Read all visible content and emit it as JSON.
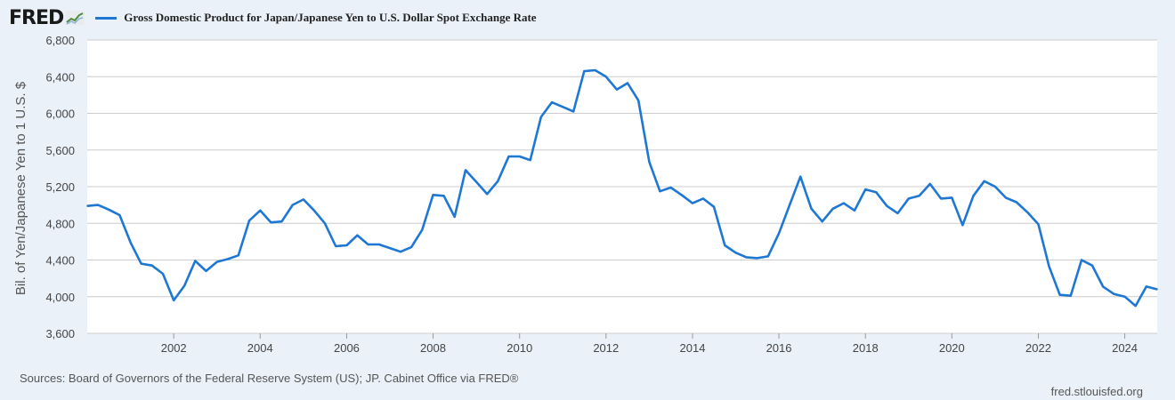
{
  "header": {
    "logo_text": "FRED",
    "legend_label": "Gross Domestic Product for Japan/Japanese Yen to U.S. Dollar Spot Exchange Rate"
  },
  "footer": {
    "source": "Sources: Board of Governors of the Federal Reserve System (US); JP. Cabinet Office via FRED®",
    "site": "fred.stlouisfed.org"
  },
  "colors": {
    "line": "#1f77d4",
    "background": "#eaf1f9",
    "plot_background": "#ffffff",
    "grid": "#cccccc"
  },
  "chart_data": {
    "type": "line",
    "title": "Gross Domestic Product for Japan/Japanese Yen to U.S. Dollar Spot Exchange Rate",
    "ylabel": "Bil. of Yen/Japanese Yen to 1 U.S. $",
    "xlabel": "",
    "ylim": [
      3600,
      6800
    ],
    "xlim": [
      "2000-01-01",
      "2024-10-01"
    ],
    "y_ticks": [
      3600,
      4000,
      4400,
      4800,
      5200,
      5600,
      6000,
      6400,
      6800
    ],
    "y_tick_labels": [
      "3,600",
      "4,000",
      "4,400",
      "4,800",
      "5,200",
      "5,600",
      "6,000",
      "6,400",
      "6,800"
    ],
    "x_ticks": [
      "2002",
      "2004",
      "2006",
      "2008",
      "2010",
      "2012",
      "2014",
      "2016",
      "2018",
      "2020",
      "2022",
      "2024"
    ],
    "grid": "horizontal",
    "legend_position": "top-left",
    "series": [
      {
        "name": "Gross Domestic Product for Japan/Japanese Yen to U.S. Dollar Spot Exchange Rate",
        "x": [
          "2000-01-01",
          "2000-04-01",
          "2000-07-01",
          "2000-10-01",
          "2001-01-01",
          "2001-04-01",
          "2001-07-01",
          "2001-10-01",
          "2002-01-01",
          "2002-04-01",
          "2002-07-01",
          "2002-10-01",
          "2003-01-01",
          "2003-04-01",
          "2003-07-01",
          "2003-10-01",
          "2004-01-01",
          "2004-04-01",
          "2004-07-01",
          "2004-10-01",
          "2005-01-01",
          "2005-04-01",
          "2005-07-01",
          "2005-10-01",
          "2006-01-01",
          "2006-04-01",
          "2006-07-01",
          "2006-10-01",
          "2007-01-01",
          "2007-04-01",
          "2007-07-01",
          "2007-10-01",
          "2008-01-01",
          "2008-04-01",
          "2008-07-01",
          "2008-10-01",
          "2009-01-01",
          "2009-04-01",
          "2009-07-01",
          "2009-10-01",
          "2010-01-01",
          "2010-04-01",
          "2010-07-01",
          "2010-10-01",
          "2011-01-01",
          "2011-04-01",
          "2011-07-01",
          "2011-10-01",
          "2012-01-01",
          "2012-04-01",
          "2012-07-01",
          "2012-10-01",
          "2013-01-01",
          "2013-04-01",
          "2013-07-01",
          "2013-10-01",
          "2014-01-01",
          "2014-04-01",
          "2014-07-01",
          "2014-10-01",
          "2015-01-01",
          "2015-04-01",
          "2015-07-01",
          "2015-10-01",
          "2016-01-01",
          "2016-04-01",
          "2016-07-01",
          "2016-10-01",
          "2017-01-01",
          "2017-04-01",
          "2017-07-01",
          "2017-10-01",
          "2018-01-01",
          "2018-04-01",
          "2018-07-01",
          "2018-10-01",
          "2019-01-01",
          "2019-04-01",
          "2019-07-01",
          "2019-10-01",
          "2020-01-01",
          "2020-04-01",
          "2020-07-01",
          "2020-10-01",
          "2021-01-01",
          "2021-04-01",
          "2021-07-01",
          "2021-10-01",
          "2022-01-01",
          "2022-04-01",
          "2022-07-01",
          "2022-10-01",
          "2023-01-01",
          "2023-04-01",
          "2023-07-01",
          "2023-10-01",
          "2024-01-01",
          "2024-04-01",
          "2024-07-01",
          "2024-10-01"
        ],
        "values": [
          4990,
          5000,
          4950,
          4890,
          4590,
          4360,
          4340,
          4250,
          3960,
          4120,
          4390,
          4280,
          4380,
          4410,
          4450,
          4830,
          4940,
          4810,
          4820,
          5000,
          5060,
          4940,
          4800,
          4550,
          4560,
          4670,
          4570,
          4570,
          4530,
          4490,
          4540,
          4730,
          5110,
          5100,
          4870,
          5380,
          5250,
          5120,
          5260,
          5530,
          5530,
          5490,
          5960,
          6120,
          6070,
          6020,
          6460,
          6470,
          6400,
          6260,
          6330,
          6140,
          5470,
          5150,
          5190,
          5110,
          5020,
          5070,
          4980,
          4560,
          4480,
          4430,
          4420,
          4440,
          4690,
          5000,
          5310,
          4960,
          4820,
          4960,
          5020,
          4940,
          5170,
          5140,
          4990,
          4910,
          5070,
          5100,
          5230,
          5070,
          5080,
          4780,
          5100,
          5260,
          5200,
          5080,
          5030,
          4920,
          4790,
          4330,
          4020,
          4010,
          4400,
          4340,
          4110,
          4030,
          4000,
          3900,
          4110,
          4080
        ]
      }
    ]
  }
}
